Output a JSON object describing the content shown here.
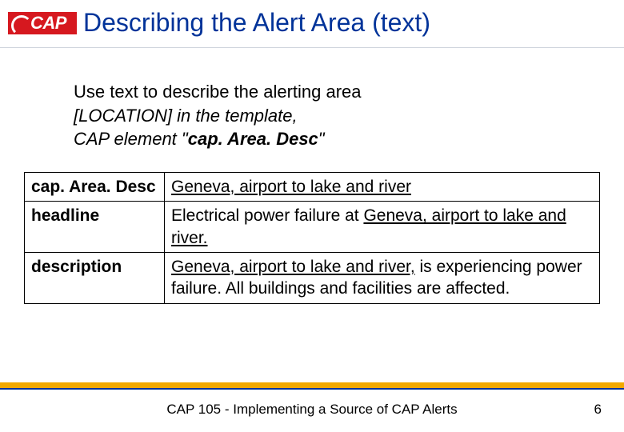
{
  "logo": {
    "text": "CAP"
  },
  "title": "Describing the Alert Area (text)",
  "intro": {
    "line1": "Use text to describe the alerting area",
    "line2": " [LOCATION] in the template,",
    "line3_pre": "CAP element \"",
    "line3_bold": "cap. Area. Desc",
    "line3_post": "\""
  },
  "table": {
    "rows": [
      {
        "label": "cap. Area. Desc",
        "value_underlined": "Geneva, airport to lake and river",
        "value_plain_before": "",
        "value_plain_after": ""
      },
      {
        "label": "headline",
        "value_plain_before": "Electrical power failure at ",
        "value_underlined": "Geneva, airport to lake and river.",
        "value_plain_after": ""
      },
      {
        "label": "description",
        "value_plain_before": "",
        "value_underlined": "Geneva, airport to lake and river,",
        "value_plain_after": " is experiencing power failure. All buildings and facilities are affected."
      }
    ]
  },
  "footer": {
    "text": "CAP 105 - Implementing a Source of CAP Alerts",
    "page": "6"
  },
  "colors": {
    "title": "#003399",
    "logo_bg": "#d6181f",
    "accent_bar": "#f2a900",
    "accent_underline": "#003399"
  }
}
